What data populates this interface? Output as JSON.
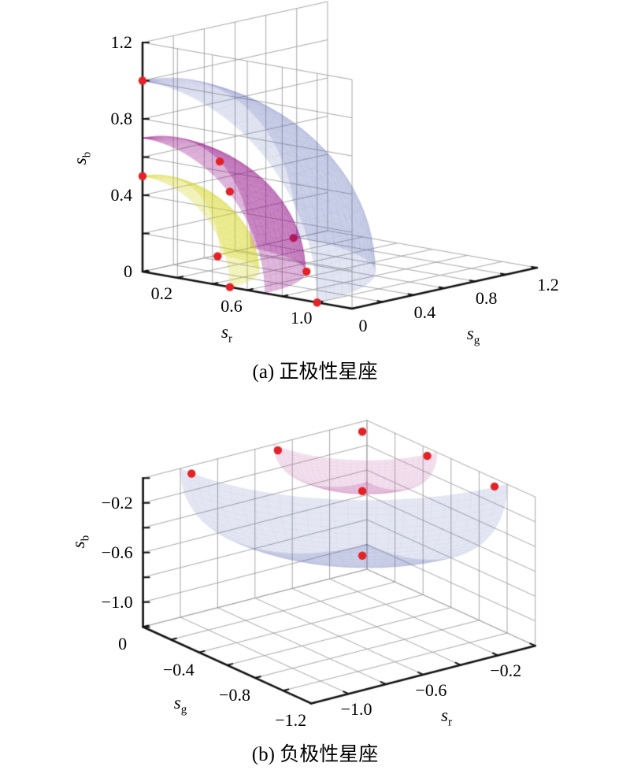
{
  "captions": {
    "a": "(a) 正极性星座",
    "b": "(b) 负极性星座"
  },
  "colors": {
    "background": "#ffffff",
    "point": "#e32227",
    "axis": "#111111",
    "grid": "#9e9e9e",
    "surface_yellow": "#d7d725",
    "surface_purple": "#96148c",
    "surface_blue": "#616fb8",
    "surface_pink": "#c169b1"
  },
  "chart_data": [
    {
      "type": "scatter3d-surface",
      "caption": "(a) 正极性星座",
      "axes": {
        "r": {
          "label_base": "s",
          "label_sub": "r",
          "range": [
            0,
            1.2
          ],
          "tick_step": 0.2,
          "tick_labels": [
            {
              "v": 0.2,
              "t": "0.2"
            },
            {
              "v": 0.6,
              "t": "0.6"
            },
            {
              "v": 1.0,
              "t": "1.0"
            }
          ]
        },
        "g": {
          "label_base": "s",
          "label_sub": "g",
          "range": [
            0,
            1.2
          ],
          "tick_step": 0.2,
          "tick_labels": [
            {
              "v": 0,
              "t": "0"
            },
            {
              "v": 0.4,
              "t": "0.4"
            },
            {
              "v": 0.8,
              "t": "0.8"
            },
            {
              "v": 1.2,
              "t": "1.2"
            }
          ]
        },
        "b": {
          "label_base": "s",
          "label_sub": "b",
          "range": [
            0,
            1.2
          ],
          "tick_step": 0.2,
          "tick_labels": [
            {
              "v": 0,
              "t": "0"
            },
            {
              "v": 0.4,
              "t": "0.4"
            },
            {
              "v": 0.8,
              "t": "0.8"
            },
            {
              "v": 1.2,
              "t": "1.2"
            }
          ]
        }
      },
      "grid": true,
      "surfaces": [
        {
          "shape": "sphere-octant",
          "octant": "+++",
          "radius": 1.0,
          "color": "#616fb8",
          "opacity": 0.18
        },
        {
          "shape": "sphere-octant",
          "octant": "+++",
          "radius": 0.7,
          "color": "#96148c",
          "opacity": 0.3
        },
        {
          "shape": "sphere-octant",
          "octant": "+++",
          "radius": 0.5,
          "color": "#d7d725",
          "opacity": 0.28
        }
      ],
      "points": [
        [
          0,
          0,
          1.0
        ],
        [
          0,
          0,
          0.5
        ],
        [
          0.31,
          0.15,
          0.6
        ],
        [
          0.5,
          0,
          0.5
        ],
        [
          0.6,
          0.3,
          0.22
        ],
        [
          0.43,
          0,
          0.15
        ],
        [
          0.63,
          0.35,
          0.04
        ],
        [
          0.5,
          0,
          0
        ],
        [
          1.0,
          0,
          0
        ]
      ],
      "behind_point_index": 4
    },
    {
      "type": "scatter3d-surface",
      "caption": "(b) 负极性星座",
      "axes": {
        "r": {
          "label_base": "s",
          "label_sub": "r",
          "range": [
            -1.2,
            0
          ],
          "tick_step": 0.2,
          "tick_labels": [
            {
              "v": -1.0,
              "t": "−1.0"
            },
            {
              "v": -0.6,
              "t": "−0.6"
            },
            {
              "v": -0.2,
              "t": "−0.2"
            }
          ]
        },
        "g": {
          "label_base": "s",
          "label_sub": "g",
          "range": [
            -1.2,
            0
          ],
          "tick_step": 0.2,
          "tick_labels": [
            {
              "v": 0,
              "t": "0"
            },
            {
              "v": -0.4,
              "t": "−0.4"
            },
            {
              "v": -0.8,
              "t": "−0.8"
            },
            {
              "v": -1.2,
              "t": "−1.2"
            }
          ]
        },
        "b": {
          "label_base": "s",
          "label_sub": "b",
          "range": [
            -1.2,
            0
          ],
          "tick_step": 0.2,
          "tick_labels": [
            {
              "v": -0.2,
              "t": "−0.2"
            },
            {
              "v": -0.6,
              "t": "−0.6"
            },
            {
              "v": -1.0,
              "t": "−1.0"
            }
          ]
        }
      },
      "grid": true,
      "surfaces": [
        {
          "shape": "sphere-octant",
          "octant": "---",
          "radius": 1.0,
          "color": "#616fb8",
          "opacity": 0.17
        },
        {
          "shape": "sphere-octant",
          "octant": "---",
          "radius": 0.5,
          "color": "#c169b1",
          "opacity": 0.2
        }
      ],
      "points": [
        [
          -0.1,
          -0.1,
          0
        ],
        [
          -0.53,
          -0.07,
          0
        ],
        [
          -1.0,
          -0.08,
          0
        ],
        [
          -0.06,
          -0.51,
          0
        ],
        [
          -0.1,
          -0.1,
          -0.48
        ],
        [
          -0.06,
          -0.99,
          0
        ],
        [
          -0.1,
          -0.1,
          -1.0
        ]
      ],
      "behind_point_index": -1
    }
  ]
}
